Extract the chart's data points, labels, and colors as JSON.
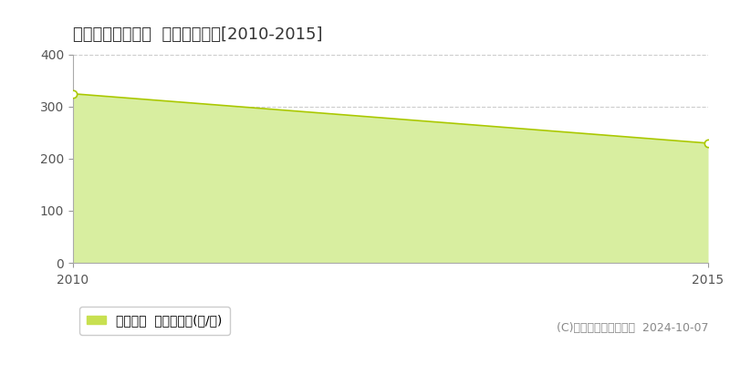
{
  "title": "高岡郡佐川町峰耕  林地価格推移[2010-2015]",
  "years": [
    2010,
    2015
  ],
  "values": [
    325,
    230
  ],
  "ylim": [
    0,
    400
  ],
  "yticks": [
    0,
    100,
    200,
    300,
    400
  ],
  "xticks": [
    2010,
    2015
  ],
  "fill_color": "#d8eea0",
  "fill_alpha": 1.0,
  "line_color": "#aac800",
  "line_width": 1.2,
  "marker_color": "white",
  "marker_edge_color": "#aac800",
  "marker_size": 6,
  "grid_color": "#cccccc",
  "grid_style": "dashed",
  "background_color": "#ffffff",
  "plot_bg_color": "#ffffff",
  "legend_label": "林地価格  平均坪単価(円/坪)",
  "legend_color": "#c8e050",
  "copyright_text": "(C)土地価格ドットコム  2024-10-07",
  "title_fontsize": 13,
  "tick_fontsize": 10,
  "legend_fontsize": 10,
  "copyright_fontsize": 9,
  "tick_color": "#999999",
  "spine_color": "#aaaaaa"
}
